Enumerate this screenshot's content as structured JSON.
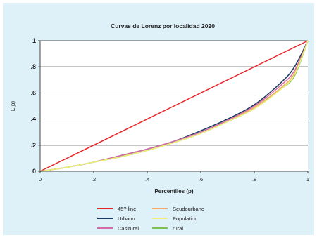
{
  "chart_data": {
    "type": "line",
    "title": "Curvas de Lorenz por localidad 2020",
    "xlabel": "Percentiles (p)",
    "ylabel": "L(p)",
    "xlim": [
      0,
      1
    ],
    "ylim": [
      0,
      1
    ],
    "x_ticks": [
      "0",
      ".2",
      ".4",
      ".6",
      ".8",
      "1"
    ],
    "y_ticks": [
      "0",
      ".2",
      ".4",
      ".6",
      ".8",
      "1"
    ],
    "grid": "horizontal",
    "legend_position": "bottom",
    "x": [
      0,
      0.1,
      0.2,
      0.3,
      0.4,
      0.5,
      0.6,
      0.7,
      0.8,
      0.9,
      0.95,
      1
    ],
    "series": [
      {
        "name": "45? line",
        "color": "#e8262a",
        "values": [
          0,
          0.1,
          0.2,
          0.3,
          0.4,
          0.5,
          0.6,
          0.7,
          0.8,
          0.9,
          0.95,
          1
        ]
      },
      {
        "name": "Population",
        "color": "#eef07a",
        "values": [
          0,
          0.03,
          0.07,
          0.11,
          0.16,
          0.22,
          0.29,
          0.38,
          0.48,
          0.63,
          0.74,
          1
        ]
      },
      {
        "name": "Urbano",
        "color": "#1b3b5e",
        "values": [
          0,
          0.03,
          0.07,
          0.12,
          0.17,
          0.23,
          0.31,
          0.4,
          0.51,
          0.68,
          0.8,
          1
        ]
      },
      {
        "name": "Seudourbano",
        "color": "#f5a96a",
        "values": [
          0,
          0.03,
          0.07,
          0.11,
          0.16,
          0.22,
          0.29,
          0.38,
          0.49,
          0.64,
          0.75,
          1
        ]
      },
      {
        "name": "Casirural",
        "color": "#d66aa6",
        "values": [
          0,
          0.03,
          0.07,
          0.12,
          0.17,
          0.23,
          0.3,
          0.39,
          0.5,
          0.66,
          0.77,
          1
        ]
      },
      {
        "name": "rural",
        "color": "#7cc152",
        "values": [
          0,
          0.03,
          0.07,
          0.11,
          0.16,
          0.22,
          0.29,
          0.38,
          0.48,
          0.63,
          0.73,
          1
        ]
      }
    ]
  }
}
